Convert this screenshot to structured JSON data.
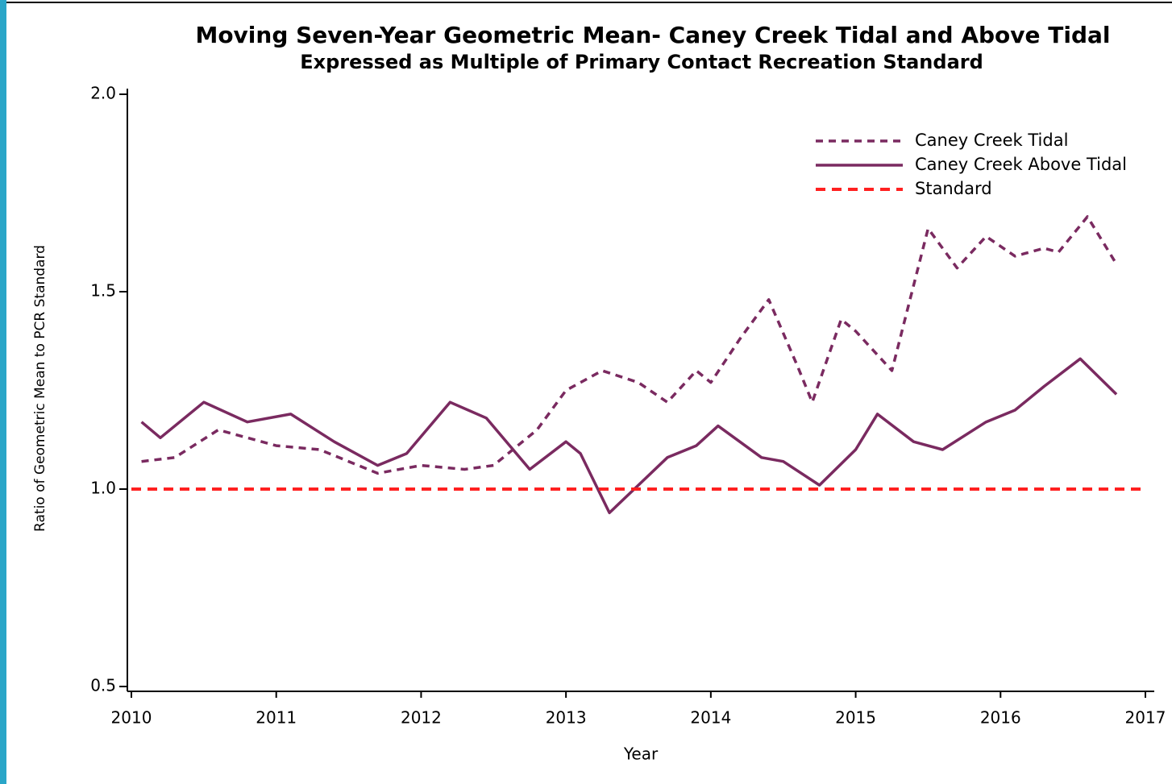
{
  "chart_data": {
    "type": "line",
    "title": "Moving Seven-Year Geometric Mean-  Caney Creek Tidal and Above Tidal",
    "subtitle": "Expressed as Multiple of Primary Contact Recreation Standard",
    "x_label": "Year",
    "y_label": "Ratio of Geometric Mean to PCR Standard",
    "xlim": [
      2010,
      2017
    ],
    "xticks": [
      2010,
      2011,
      2012,
      2013,
      2014,
      2015,
      2016,
      2017
    ],
    "ylim": [
      0.5,
      2.0
    ],
    "yticks": [
      {
        "value": 0.5,
        "label": "0.5"
      },
      {
        "value": 1,
        "label": "1.0"
      },
      {
        "value": 1.5,
        "label": "1.5"
      },
      {
        "value": 2,
        "label": "2.0"
      }
    ],
    "legend_position": "upper right",
    "series": [
      {
        "name": "Caney Creek Tidal",
        "color": "#7a2a60",
        "dash": "dashed",
        "x": [
          2010.07,
          2010.3,
          2010.6,
          2011.0,
          2011.3,
          2011.7,
          2012.0,
          2012.3,
          2012.5,
          2012.8,
          2013.0,
          2013.25,
          2013.5,
          2013.7,
          2013.9,
          2014.0,
          2014.2,
          2014.4,
          2014.6,
          2014.7,
          2014.9,
          2015.0,
          2015.25,
          2015.5,
          2015.7,
          2015.9,
          2016.1,
          2016.3,
          2016.4,
          2016.6,
          2016.8
        ],
        "values": [
          1.07,
          1.08,
          1.15,
          1.11,
          1.1,
          1.04,
          1.06,
          1.05,
          1.06,
          1.15,
          1.25,
          1.3,
          1.27,
          1.22,
          1.3,
          1.27,
          1.38,
          1.48,
          1.31,
          1.22,
          1.43,
          1.4,
          1.3,
          1.66,
          1.56,
          1.64,
          1.59,
          1.61,
          1.6,
          1.69,
          1.57
        ]
      },
      {
        "name": "Caney Creek Above Tidal",
        "color": "#7a2a60",
        "dash": "solid",
        "x": [
          2010.07,
          2010.2,
          2010.5,
          2010.8,
          2011.1,
          2011.4,
          2011.7,
          2011.9,
          2012.2,
          2012.45,
          2012.75,
          2013.0,
          2013.1,
          2013.3,
          2013.5,
          2013.7,
          2013.9,
          2014.05,
          2014.35,
          2014.5,
          2014.75,
          2015.0,
          2015.15,
          2015.4,
          2015.6,
          2015.9,
          2016.1,
          2016.3,
          2016.55,
          2016.8
        ],
        "values": [
          1.17,
          1.13,
          1.22,
          1.17,
          1.19,
          1.12,
          1.06,
          1.09,
          1.22,
          1.18,
          1.05,
          1.12,
          1.09,
          0.94,
          1.01,
          1.08,
          1.11,
          1.16,
          1.08,
          1.07,
          1.01,
          1.1,
          1.19,
          1.12,
          1.1,
          1.17,
          1.2,
          1.26,
          1.33,
          1.24
        ]
      },
      {
        "name": "Standard",
        "color": "#ff2020",
        "dash": "dashed",
        "x": [
          2010,
          2017
        ],
        "values": [
          1,
          1
        ]
      }
    ]
  }
}
